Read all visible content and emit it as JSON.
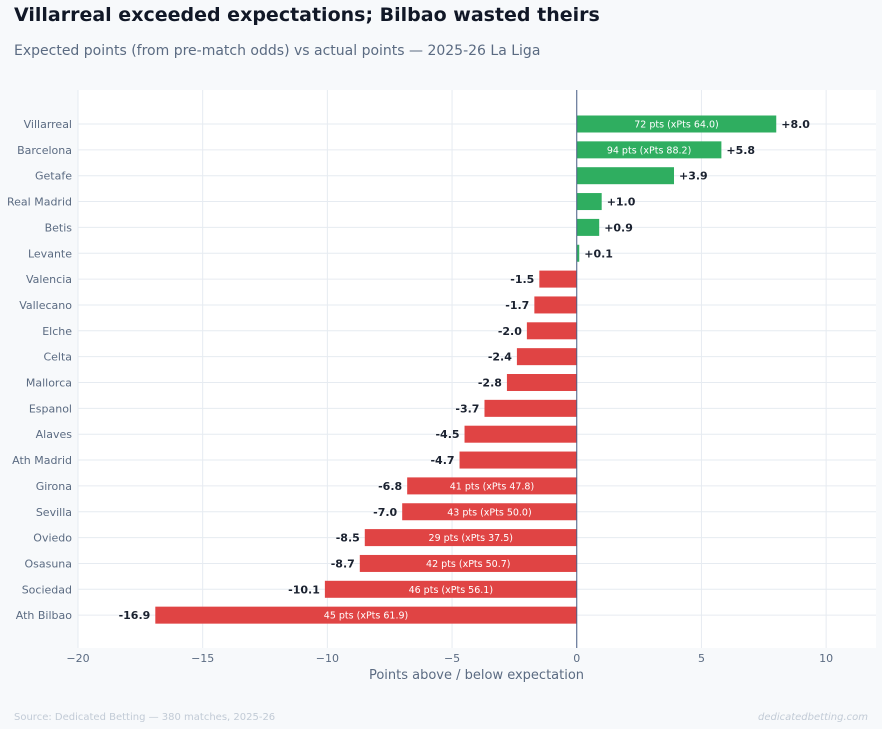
{
  "header": {
    "title": "Villarreal exceeded expectations; Bilbao wasted theirs",
    "subtitle": "Expected points (from pre-match odds) vs actual points — 2025-26 La Liga"
  },
  "footer": {
    "source": "Source: Dedicated Betting — 380 matches, 2025-26",
    "brand": "dedicatedbetting.com"
  },
  "colors": {
    "positive": "#2fae60",
    "negative": "#e04444",
    "zero_line": "#4a5f86",
    "grid": "#e6ebf1",
    "tick_text": "#5b6b82",
    "value_text": "#1b2230",
    "bar_text": "#ffffff"
  },
  "chart_data": {
    "type": "bar",
    "orientation": "horizontal",
    "xlabel": "Points above / below expectation",
    "xlim": [
      -20,
      12
    ],
    "xticks": [
      -20,
      -15,
      -10,
      -5,
      0,
      5,
      10
    ],
    "xtick_labels": [
      "−20",
      "−15",
      "−10",
      "−5",
      "0",
      "5",
      "10"
    ],
    "grid": true,
    "categories": [
      "Villarreal",
      "Barcelona",
      "Getafe",
      "Real Madrid",
      "Betis",
      "Levante",
      "Valencia",
      "Vallecano",
      "Elche",
      "Celta",
      "Mallorca",
      "Espanol",
      "Alaves",
      "Ath Madrid",
      "Girona",
      "Sevilla",
      "Oviedo",
      "Osasuna",
      "Sociedad",
      "Ath Bilbao"
    ],
    "values": [
      8.0,
      5.8,
      3.9,
      1.0,
      0.9,
      0.1,
      -1.5,
      -1.7,
      -2.0,
      -2.4,
      -2.8,
      -3.7,
      -4.5,
      -4.7,
      -6.8,
      -7.0,
      -8.5,
      -8.7,
      -10.1,
      -16.9
    ],
    "value_labels": [
      "+8.0",
      "+5.8",
      "+3.9",
      "+1.0",
      "+0.9",
      "+0.1",
      "-1.5",
      "-1.7",
      "-2.0",
      "-2.4",
      "-2.8",
      "-3.7",
      "-4.5",
      "-4.7",
      "-6.8",
      "-7.0",
      "-8.5",
      "-8.7",
      "-10.1",
      "-16.9"
    ],
    "bar_annotations": [
      "72 pts  (xPts 64.0)",
      "94 pts  (xPts 88.2)",
      "",
      "",
      "",
      "",
      "",
      "",
      "",
      "",
      "",
      "",
      "",
      "",
      "41 pts  (xPts 47.8)",
      "43 pts  (xPts 50.0)",
      "29 pts  (xPts 37.5)",
      "42 pts  (xPts 50.7)",
      "46 pts  (xPts 56.1)",
      "45 pts  (xPts 61.9)"
    ]
  }
}
